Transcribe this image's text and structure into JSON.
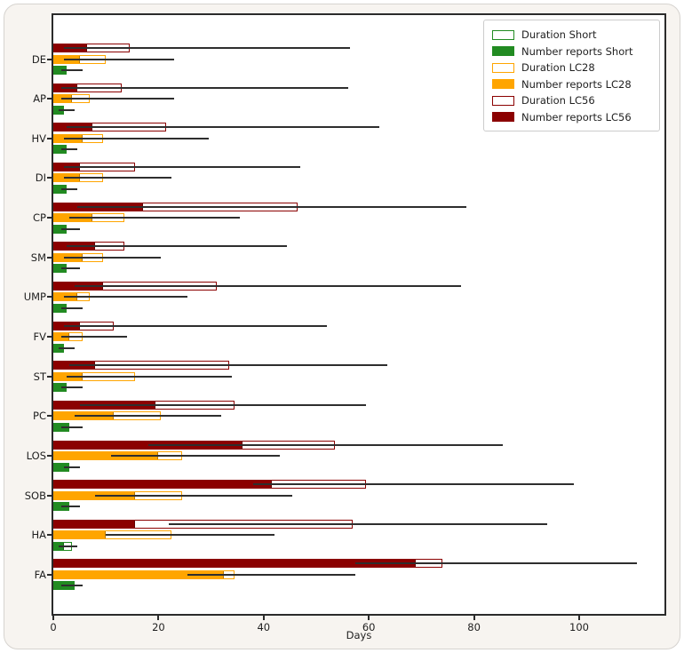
{
  "chart_data": {
    "type": "bar",
    "orientation": "horizontal",
    "title": "",
    "xlabel": "Days",
    "ylabel": "",
    "x_ticks": [
      0,
      20,
      40,
      60,
      80,
      100
    ],
    "xlim": [
      0,
      117
    ],
    "grid": false,
    "legend_position": "upper right",
    "colors": {
      "short": "#228B22",
      "lc28": "#FFA500",
      "lc56": "#8B0000",
      "whisker": "#2e2e2e"
    },
    "legend": [
      {
        "label": "Duration Short",
        "style": "outline",
        "series": "short"
      },
      {
        "label": "Number reports Short",
        "style": "filled",
        "series": "short"
      },
      {
        "label": "Duration LC28",
        "style": "outline",
        "series": "lc28"
      },
      {
        "label": "Number reports LC28",
        "style": "filled",
        "series": "lc28"
      },
      {
        "label": "Duration LC56",
        "style": "outline",
        "series": "lc56"
      },
      {
        "label": "Number reports LC56",
        "style": "filled",
        "series": "lc56"
      }
    ],
    "categories": [
      "DE",
      "AP",
      "HV",
      "DI",
      "CP",
      "SM",
      "UMP",
      "FV",
      "ST",
      "PC",
      "LOS",
      "SOB",
      "HA",
      "FA"
    ],
    "groups": [
      {
        "category": "DE",
        "lc56": {
          "reports": 6.5,
          "duration": 14.5,
          "whisker": [
            2,
            56.5
          ]
        },
        "lc28": {
          "reports": 5,
          "duration": 10,
          "whisker": [
            2,
            23
          ]
        },
        "short": {
          "reports": 2.5,
          "duration": 2.5,
          "whisker": [
            1.5,
            5.5
          ]
        }
      },
      {
        "category": "AP",
        "lc56": {
          "reports": 4.5,
          "duration": 13,
          "whisker": [
            1.5,
            56
          ]
        },
        "lc28": {
          "reports": 3.5,
          "duration": 7,
          "whisker": [
            1.5,
            23
          ]
        },
        "short": {
          "reports": 2,
          "duration": 2,
          "whisker": [
            1,
            4
          ]
        }
      },
      {
        "category": "HV",
        "lc56": {
          "reports": 7.5,
          "duration": 21.5,
          "whisker": [
            2.5,
            62
          ]
        },
        "lc28": {
          "reports": 5.5,
          "duration": 9.5,
          "whisker": [
            2,
            29.5
          ]
        },
        "short": {
          "reports": 2.5,
          "duration": 2.5,
          "whisker": [
            1.5,
            4.5
          ]
        }
      },
      {
        "category": "DI",
        "lc56": {
          "reports": 5,
          "duration": 15.5,
          "whisker": [
            2,
            47
          ]
        },
        "lc28": {
          "reports": 5,
          "duration": 9.5,
          "whisker": [
            2,
            22.5
          ]
        },
        "short": {
          "reports": 2.5,
          "duration": 2.5,
          "whisker": [
            1.5,
            4.5
          ]
        }
      },
      {
        "category": "CP",
        "lc56": {
          "reports": 17,
          "duration": 46.5,
          "whisker": [
            4.5,
            78.5
          ]
        },
        "lc28": {
          "reports": 7.5,
          "duration": 13.5,
          "whisker": [
            3,
            35.5
          ]
        },
        "short": {
          "reports": 2.5,
          "duration": 2.5,
          "whisker": [
            1.5,
            5
          ]
        }
      },
      {
        "category": "SM",
        "lc56": {
          "reports": 8,
          "duration": 13.5,
          "whisker": [
            2.5,
            44.5
          ]
        },
        "lc28": {
          "reports": 5.5,
          "duration": 9.5,
          "whisker": [
            2,
            20.5
          ]
        },
        "short": {
          "reports": 2.5,
          "duration": 2.5,
          "whisker": [
            1.5,
            5
          ]
        }
      },
      {
        "category": "UMP",
        "lc56": {
          "reports": 9.5,
          "duration": 31,
          "whisker": [
            4,
            77.5
          ]
        },
        "lc28": {
          "reports": 4.5,
          "duration": 7,
          "whisker": [
            2,
            25.5
          ]
        },
        "short": {
          "reports": 2.5,
          "duration": 2.5,
          "whisker": [
            1.5,
            5.5
          ]
        }
      },
      {
        "category": "FV",
        "lc56": {
          "reports": 5,
          "duration": 11.5,
          "whisker": [
            2,
            52
          ]
        },
        "lc28": {
          "reports": 3,
          "duration": 5.5,
          "whisker": [
            1.5,
            14
          ]
        },
        "short": {
          "reports": 2,
          "duration": 2,
          "whisker": [
            1,
            4
          ]
        }
      },
      {
        "category": "ST",
        "lc56": {
          "reports": 8,
          "duration": 33.5,
          "whisker": [
            3,
            63.5
          ]
        },
        "lc28": {
          "reports": 5.5,
          "duration": 15.5,
          "whisker": [
            2.5,
            34
          ]
        },
        "short": {
          "reports": 2.5,
          "duration": 2.5,
          "whisker": [
            1.5,
            5.5
          ]
        }
      },
      {
        "category": "PC",
        "lc56": {
          "reports": 19.5,
          "duration": 34.5,
          "whisker": [
            5,
            59.5
          ]
        },
        "lc28": {
          "reports": 11.5,
          "duration": 20.5,
          "whisker": [
            4,
            32
          ]
        },
        "short": {
          "reports": 3,
          "duration": 3,
          "whisker": [
            1.5,
            5.5
          ]
        }
      },
      {
        "category": "LOS",
        "lc56": {
          "reports": 36,
          "duration": 53.5,
          "whisker": [
            18,
            85.5
          ]
        },
        "lc28": {
          "reports": 20,
          "duration": 24.5,
          "whisker": [
            11,
            43
          ]
        },
        "short": {
          "reports": 3,
          "duration": 3,
          "whisker": [
            2,
            5
          ]
        }
      },
      {
        "category": "SOB",
        "lc56": {
          "reports": 41.5,
          "duration": 59.5,
          "whisker": [
            38,
            99
          ]
        },
        "lc28": {
          "reports": 15.5,
          "duration": 24.5,
          "whisker": [
            8,
            45.5
          ]
        },
        "short": {
          "reports": 3,
          "duration": 3,
          "whisker": [
            1.5,
            5
          ]
        }
      },
      {
        "category": "HA",
        "lc56": {
          "reports": 15.5,
          "duration": 57,
          "whisker": [
            22,
            94
          ]
        },
        "lc28": {
          "reports": 10,
          "duration": 22.5,
          "whisker": [
            10,
            42
          ]
        },
        "short": {
          "reports": 2,
          "duration": 3.5,
          "whisker": [
            1,
            4.5
          ]
        }
      },
      {
        "category": "FA",
        "lc56": {
          "reports": 69,
          "duration": 74,
          "whisker": [
            57.5,
            111
          ]
        },
        "lc28": {
          "reports": 32.5,
          "duration": 34.5,
          "whisker": [
            25.5,
            57.5
          ]
        },
        "short": {
          "reports": 4,
          "duration": 4,
          "whisker": [
            1.5,
            5.5
          ]
        }
      }
    ]
  }
}
